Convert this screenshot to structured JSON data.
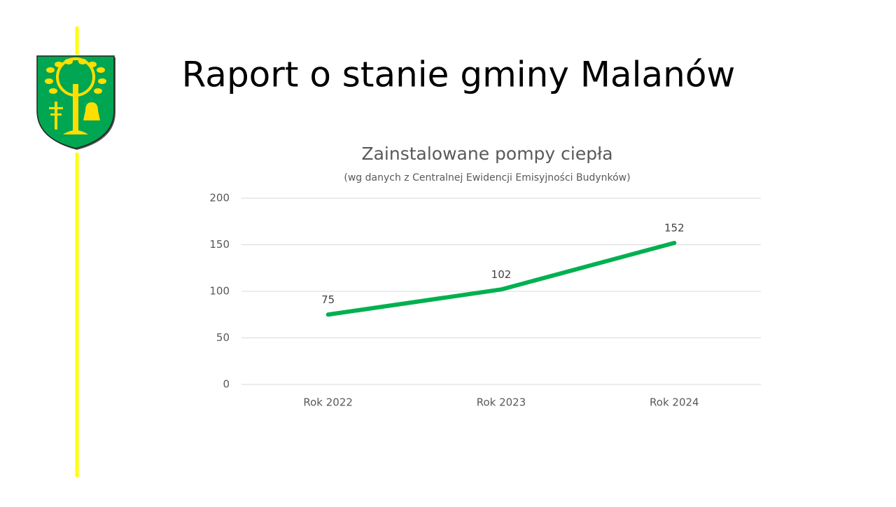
{
  "slide": {
    "title": "Raport o stanie gminy Malanów"
  },
  "chart_data": {
    "type": "line",
    "title": "Zainstalowane pompy ciepła",
    "subtitle": "(wg danych z Centralnej Ewidencji Emisyjności Budynków)",
    "categories": [
      "Rok 2022",
      "Rok 2023",
      "Rok 2024"
    ],
    "series": [
      {
        "name": "Zainstalowane pompy ciepła",
        "color": "#00b050",
        "values": [
          75,
          102,
          152
        ]
      }
    ],
    "ylim": [
      0,
      200
    ],
    "yticks": [
      0,
      50,
      100,
      150,
      200
    ],
    "grid": true
  }
}
